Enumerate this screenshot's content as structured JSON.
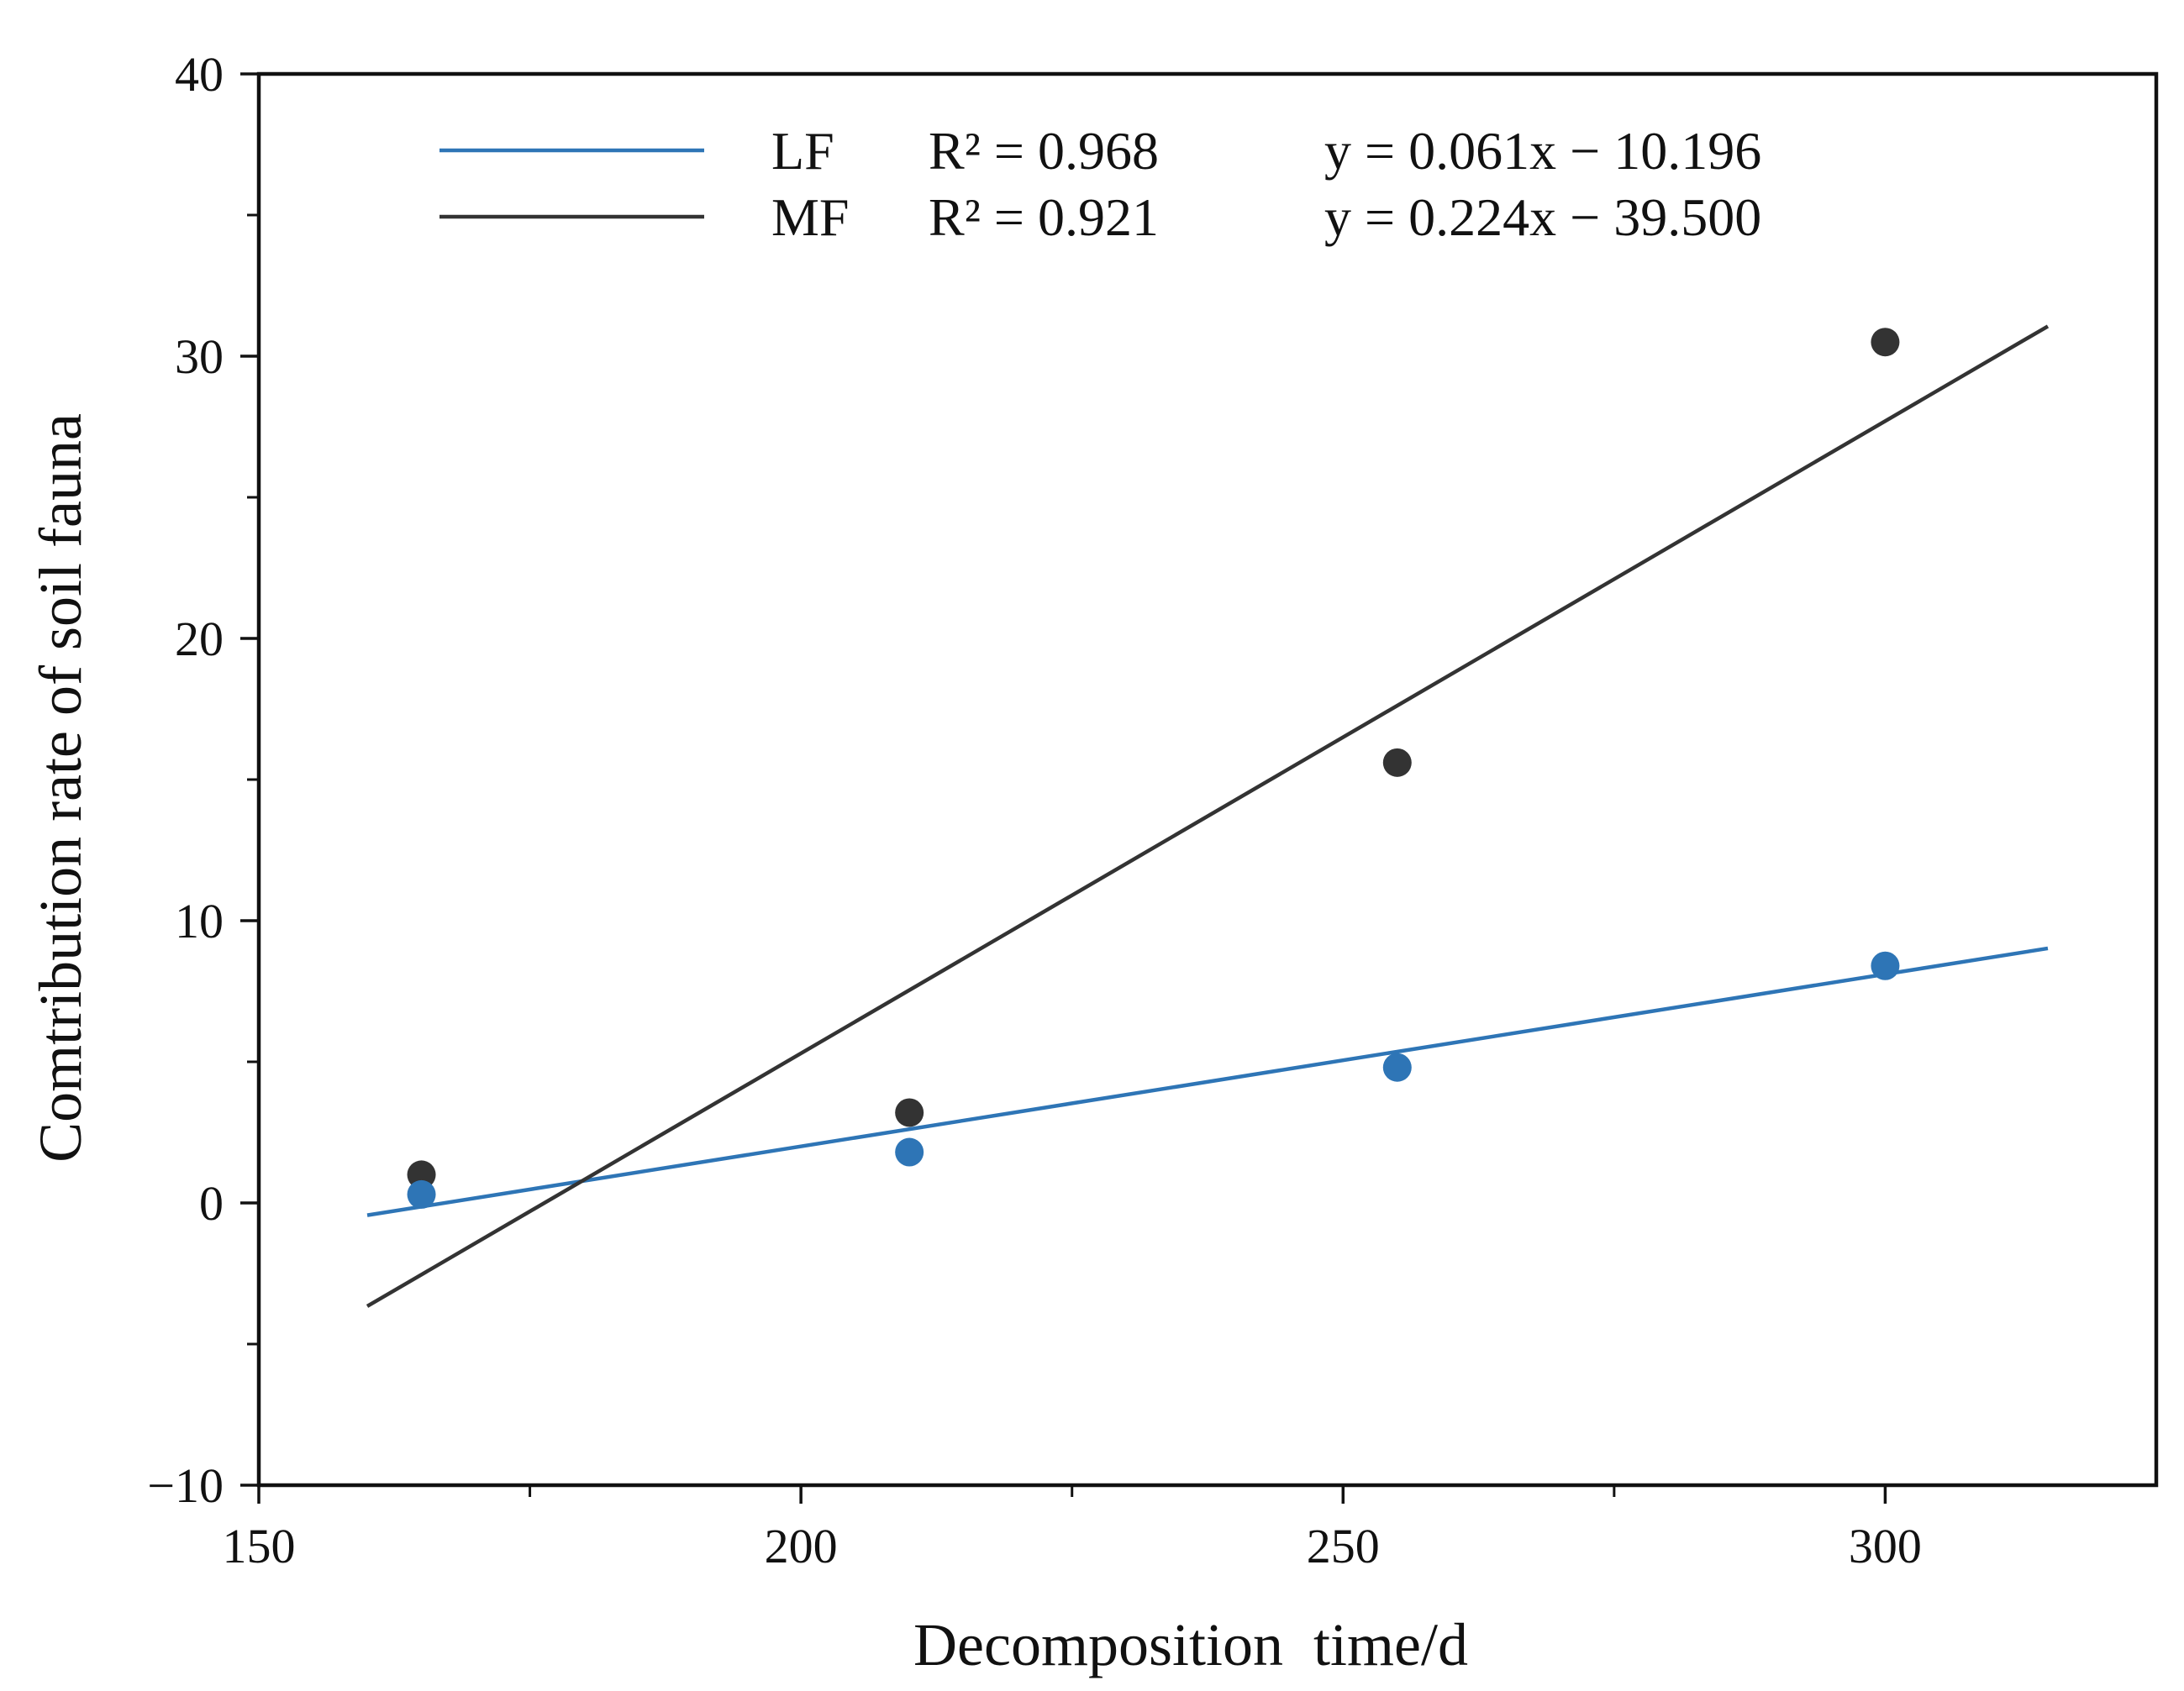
{
  "chart_data": {
    "type": "scatter",
    "title": "",
    "xlabel": "Decomposition  time/d",
    "ylabel": "Comtribution rate of soil fauna",
    "xlim": [
      150,
      325
    ],
    "ylim": [
      -10,
      40
    ],
    "x_major_ticks": [
      150,
      200,
      250,
      300
    ],
    "x_tick_labels": [
      "150",
      "200",
      "250",
      "300"
    ],
    "x_minor_ticks": [
      175,
      225,
      275
    ],
    "y_major_ticks": [
      -10,
      0,
      10,
      20,
      30,
      40
    ],
    "y_tick_labels": [
      "−10",
      "0",
      "10",
      "20",
      "30",
      "40"
    ],
    "y_minor_ticks": [
      -5,
      5,
      15,
      25,
      35
    ],
    "grid": false,
    "legend_position": "top",
    "series": [
      {
        "name": "LF",
        "color": "#2e75b6",
        "x": [
          165,
          210,
          255,
          300
        ],
        "y": [
          0.3,
          1.8,
          4.8,
          8.4
        ],
        "fit": {
          "slope": 0.061,
          "intercept": -10.196,
          "x_range": [
            160,
            315
          ],
          "r2_label": "R² = 0.968",
          "equation_label": "y = 0.061x − 10.196"
        }
      },
      {
        "name": "MF",
        "color": "#333333",
        "x": [
          165,
          210,
          255,
          300
        ],
        "y": [
          1.0,
          3.2,
          15.6,
          30.5
        ],
        "fit": {
          "slope": 0.224,
          "intercept": -39.5,
          "x_range": [
            160,
            315
          ],
          "r2_label": "R² = 0.921",
          "equation_label": "y = 0.224x − 39.500"
        }
      }
    ]
  }
}
